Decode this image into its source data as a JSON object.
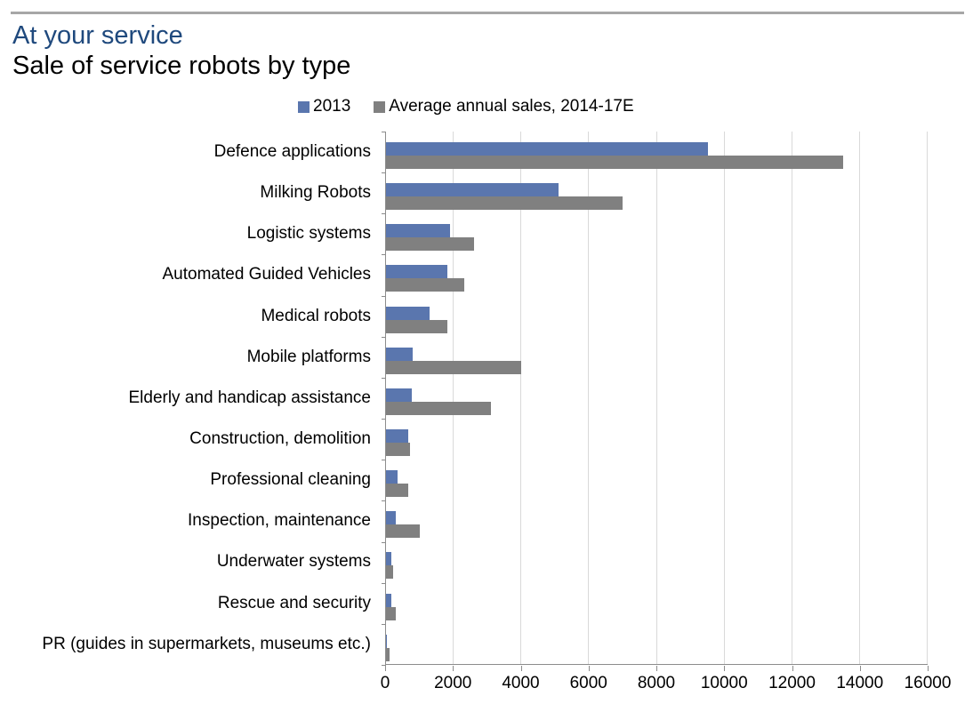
{
  "header": {
    "title": "At your service",
    "subtitle": "Sale of service robots by type"
  },
  "colors": {
    "title_text": "#1F497D",
    "series_2013": "#5A76AE",
    "series_avg": "#808080",
    "gridline": "#D9D9D9",
    "axis_line": "#8C8C8C",
    "top_rule": "#A7A7A7"
  },
  "chart_data": {
    "type": "bar",
    "orientation": "horizontal",
    "title": "At your service",
    "subtitle": "Sale of service robots by type",
    "legend_position": "top",
    "grid": "vertical",
    "xlim": [
      0,
      16000
    ],
    "x_ticks": [
      0,
      2000,
      4000,
      6000,
      8000,
      10000,
      12000,
      14000,
      16000
    ],
    "categories": [
      "Defence applications",
      "Milking Robots",
      "Logistic systems",
      "Automated Guided Vehicles",
      "Medical robots",
      "Mobile platforms",
      "Elderly and handicap assistance",
      "Construction, demolition",
      "Professional cleaning",
      "Inspection, maintenance",
      "Underwater systems",
      "Rescue and security",
      "PR (guides in supermarkets, museums etc.)"
    ],
    "series": [
      {
        "name": "2013",
        "color": "#5A76AE",
        "values": [
          9500,
          5100,
          1900,
          1800,
          1300,
          800,
          750,
          650,
          350,
          300,
          150,
          150,
          10
        ]
      },
      {
        "name": "Average annual sales, 2014-17E",
        "color": "#808080",
        "values": [
          13500,
          7000,
          2600,
          2300,
          1800,
          4000,
          3100,
          700,
          650,
          1000,
          200,
          300,
          100
        ]
      }
    ]
  }
}
